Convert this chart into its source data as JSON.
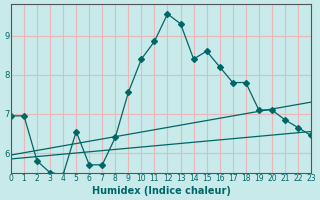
{
  "background_color": "#c8eaea",
  "grid_color": "#e8b8b8",
  "line_color": "#006666",
  "xlabel": "Humidex (Indice chaleur)",
  "ylabel": "",
  "xlim": [
    0,
    23
  ],
  "ylim": [
    5.5,
    9.8
  ],
  "yticks": [
    6,
    7,
    8,
    9
  ],
  "xticks": [
    0,
    1,
    2,
    3,
    4,
    5,
    6,
    7,
    8,
    9,
    10,
    11,
    12,
    13,
    14,
    15,
    16,
    17,
    18,
    19,
    20,
    21,
    22,
    23
  ],
  "series": [
    {
      "x": [
        0,
        1,
        2,
        3,
        4,
        5,
        6,
        7,
        8,
        9,
        10,
        11,
        12,
        13,
        14,
        15,
        16,
        17,
        18,
        19,
        20,
        21,
        22,
        23
      ],
      "y": [
        6.95,
        6.95,
        5.8,
        5.5,
        5.45,
        6.55,
        5.7,
        5.7,
        6.4,
        7.55,
        8.4,
        8.85,
        9.55,
        9.3,
        8.4,
        8.6,
        8.2,
        7.8,
        7.8,
        7.1,
        7.1,
        6.85,
        6.65,
        6.45
      ],
      "marker": "D",
      "markersize": 3
    },
    {
      "x": [
        0,
        23
      ],
      "y": [
        5.85,
        6.55
      ],
      "marker": null,
      "markersize": 0
    },
    {
      "x": [
        0,
        23
      ],
      "y": [
        5.95,
        7.3
      ],
      "marker": null,
      "markersize": 0
    }
  ]
}
